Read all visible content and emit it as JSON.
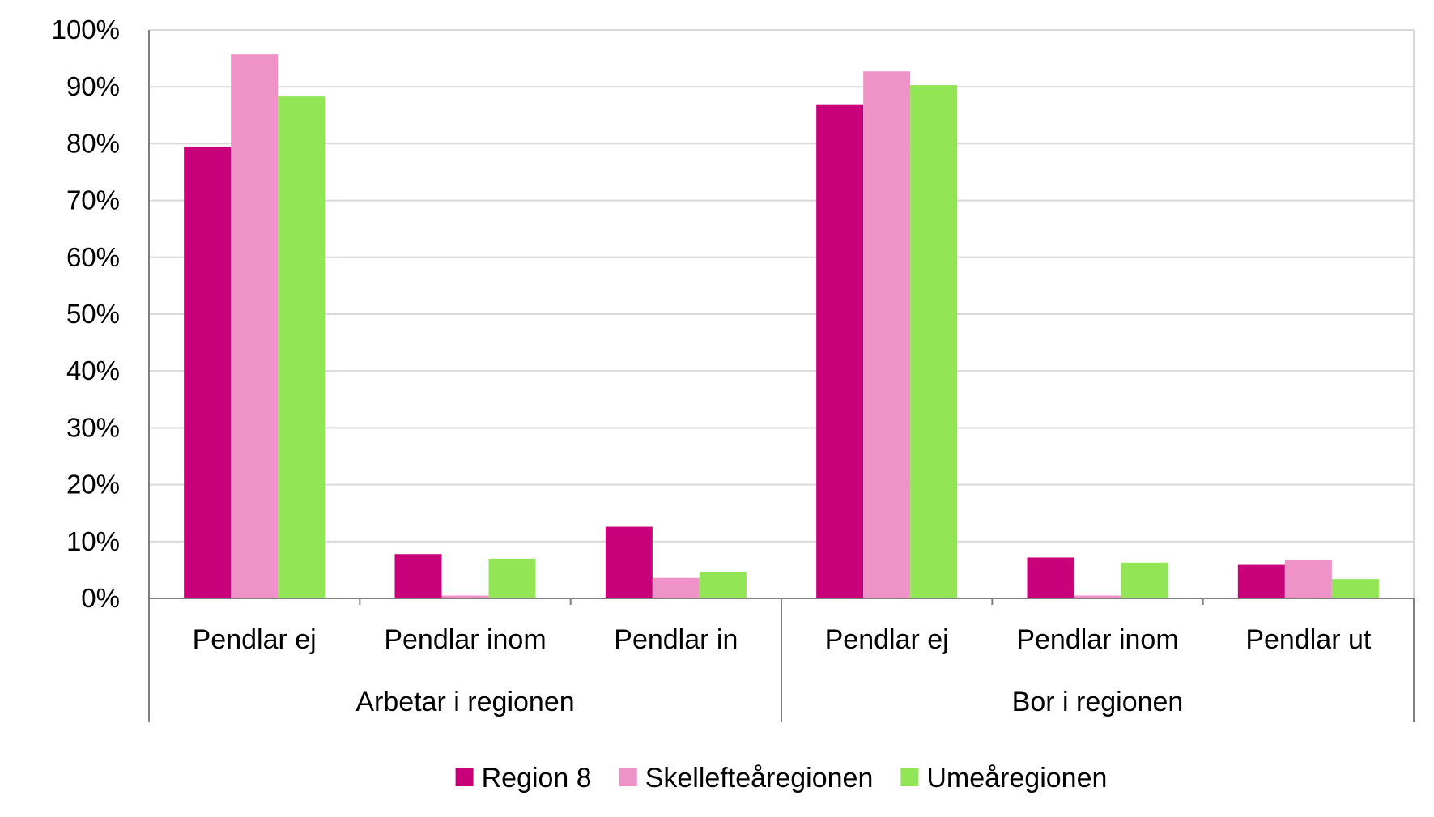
{
  "chart_data": {
    "type": "bar",
    "title": "",
    "xlabel": "",
    "ylabel": "",
    "ylim": [
      0,
      100
    ],
    "y_ticks": [
      "0%",
      "10%",
      "20%",
      "30%",
      "40%",
      "50%",
      "60%",
      "70%",
      "80%",
      "90%",
      "100%"
    ],
    "grid": true,
    "legend_position": "bottom",
    "groups": [
      {
        "label": "Arbetar i regionen",
        "categories": [
          "Pendlar ej",
          "Pendlar inom",
          "Pendlar in"
        ]
      },
      {
        "label": "Bor i regionen",
        "categories": [
          "Pendlar ej",
          "Pendlar inom",
          "Pendlar ut"
        ]
      }
    ],
    "categories": [
      "Pendlar ej",
      "Pendlar inom",
      "Pendlar in",
      "Pendlar ej",
      "Pendlar inom",
      "Pendlar ut"
    ],
    "series": [
      {
        "name": "Region 8",
        "color": "#c8007a",
        "values": [
          79.5,
          7.8,
          12.6,
          86.8,
          7.2,
          5.9
        ]
      },
      {
        "name": "Skellefteåregionen",
        "color": "#ee92c8",
        "values": [
          95.7,
          0.5,
          3.6,
          92.7,
          0.5,
          6.8
        ]
      },
      {
        "name": "Umeåregionen",
        "color": "#92e655",
        "values": [
          88.3,
          7.0,
          4.7,
          90.3,
          6.3,
          3.4
        ]
      }
    ]
  }
}
